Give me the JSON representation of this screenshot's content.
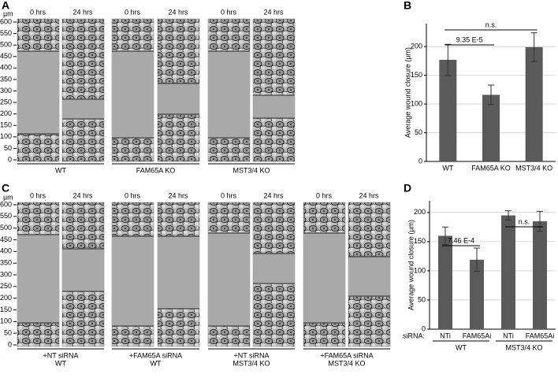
{
  "panel_a": {
    "letter": "A",
    "axis_unit": "µm",
    "yticks": [
      0,
      50,
      100,
      150,
      200,
      250,
      300,
      350,
      400,
      450,
      500,
      550,
      600
    ],
    "groups": [
      {
        "times": [
          "0 hrs",
          "24 hrs"
        ],
        "label": [
          "WT"
        ]
      },
      {
        "times": [
          "0 hrs",
          "24 hrs"
        ],
        "label": [
          "FAM65A KO"
        ]
      },
      {
        "times": [
          "0 hrs",
          "24 hrs"
        ],
        "label": [
          "MST3/4 KO"
        ]
      }
    ]
  },
  "panel_c": {
    "letter": "C",
    "axis_unit": "µm",
    "yticks": [
      0,
      50,
      100,
      150,
      200,
      250,
      300,
      350,
      400,
      450,
      500,
      550,
      600
    ],
    "groups": [
      {
        "times": [
          "0 hrs",
          "24 hrs"
        ],
        "label": [
          "+NT siRNA",
          "WT"
        ]
      },
      {
        "times": [
          "0 hrs",
          "24 hrs"
        ],
        "label": [
          "+FAM65A siRNA",
          "WT"
        ]
      },
      {
        "times": [
          "0 hrs",
          "24 hrs"
        ],
        "label": [
          "+NT siRNA",
          "MST3/4 KO"
        ]
      },
      {
        "times": [
          "0 hrs",
          "24 hrs"
        ],
        "label": [
          "+FAM65A siRNA",
          "MST3/4 KO"
        ]
      }
    ]
  },
  "chart_data": [
    {
      "panel": "B",
      "type": "bar",
      "ylabel": "Average wound closure (µm)",
      "categories": [
        "WT",
        "FAM65A KO",
        "MST3/4 KO"
      ],
      "values": [
        177,
        116,
        199
      ],
      "errors": [
        27,
        17,
        25
      ],
      "color": "#5a5a5a",
      "ylim": [
        0,
        240
      ],
      "yticks": [
        0,
        50,
        100,
        150,
        200
      ],
      "grid": true,
      "annotations": [
        "9.35 E-5",
        "n.s."
      ]
    },
    {
      "panel": "D",
      "type": "bar",
      "ylabel": "Average wound closure (µm)",
      "category_prefix": "siRNA:",
      "categories": [
        "NTi",
        "FAM65Ai",
        "NTi",
        "FAM65Ai"
      ],
      "groups": [
        "WT",
        "MST3/4 KO"
      ],
      "values": [
        160,
        119,
        195,
        185
      ],
      "errors": [
        15,
        20,
        8,
        17
      ],
      "color": "#5a5a5a",
      "ylim": [
        0,
        220
      ],
      "yticks": [
        0,
        50,
        100,
        150,
        200
      ],
      "grid": true,
      "annotations": [
        "7.46 E-4",
        "n.s."
      ]
    }
  ]
}
